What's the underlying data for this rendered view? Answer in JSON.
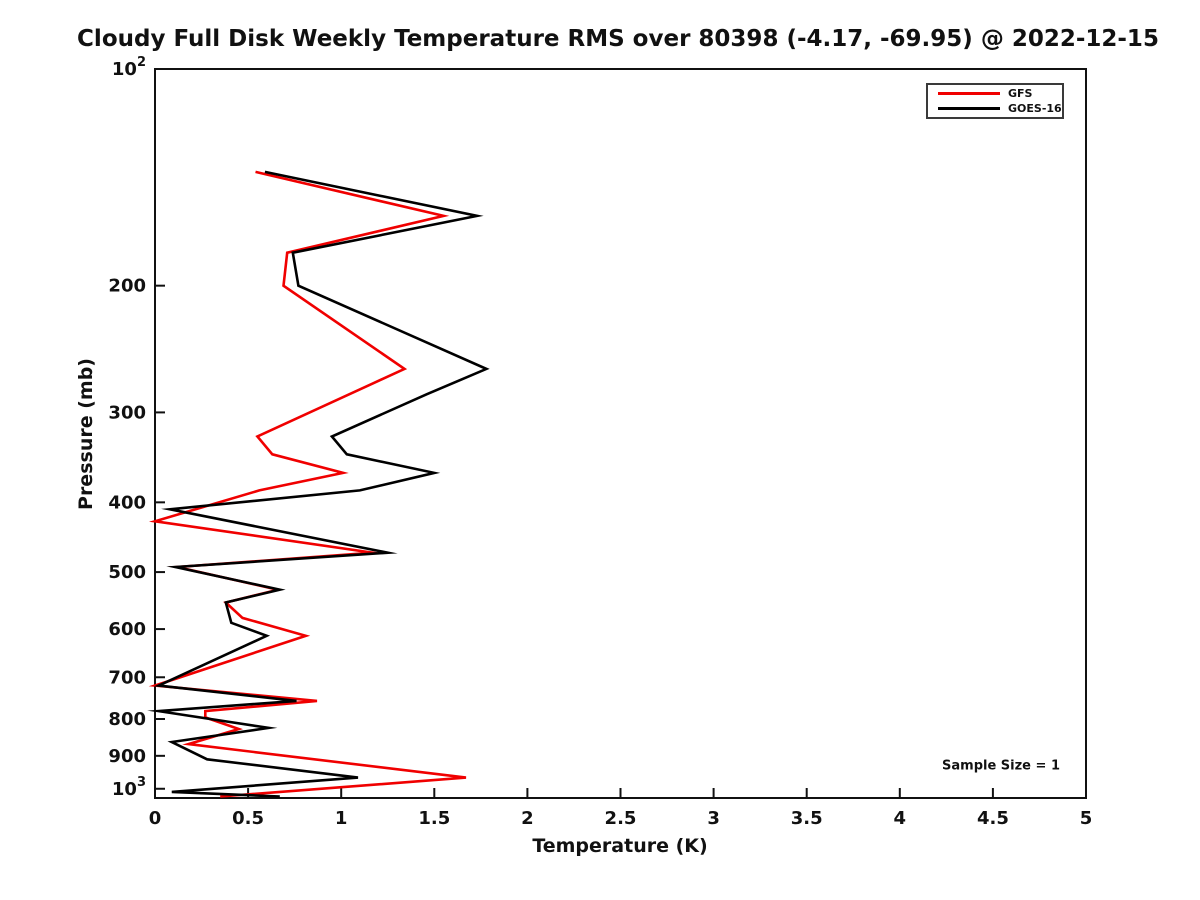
{
  "window": {
    "background": "#ffffff"
  },
  "annotations": {
    "sample_size": "Sample Size = 1"
  },
  "chart_data": {
    "type": "line",
    "title": "Cloudy Full Disk Weekly Temperature RMS over 80398 (-4.17, -69.95) @ 2022-12-15",
    "xlabel": "Temperature (K)",
    "ylabel": "Pressure (mb)",
    "grid": false,
    "legend_position": "top-right",
    "x_axis": {
      "min": 0,
      "max": 5,
      "ticks": [
        {
          "v": 0,
          "text": "0"
        },
        {
          "v": 0.5,
          "text": "0.5"
        },
        {
          "v": 1,
          "text": "1"
        },
        {
          "v": 1.5,
          "text": "1.5"
        },
        {
          "v": 2,
          "text": "2"
        },
        {
          "v": 2.5,
          "text": "2.5"
        },
        {
          "v": 3,
          "text": "3"
        },
        {
          "v": 3.5,
          "text": "3.5"
        },
        {
          "v": 4,
          "text": "4"
        },
        {
          "v": 4.5,
          "text": "4.5"
        },
        {
          "v": 5,
          "text": "5"
        }
      ]
    },
    "y_axis": {
      "scale": "log",
      "inverted": true,
      "min": 100,
      "max": 1030,
      "unit": "mb",
      "ticks": [
        {
          "p": 100,
          "text": "10",
          "sup": "2"
        },
        {
          "p": 200,
          "text": "200"
        },
        {
          "p": 300,
          "text": "300"
        },
        {
          "p": 400,
          "text": "400"
        },
        {
          "p": 500,
          "text": "500"
        },
        {
          "p": 600,
          "text": "600"
        },
        {
          "p": 700,
          "text": "700"
        },
        {
          "p": 800,
          "text": "800"
        },
        {
          "p": 900,
          "text": "900"
        },
        {
          "p": 1000,
          "text": "10",
          "sup": "3"
        }
      ]
    },
    "series": [
      {
        "name": "GFS",
        "color": "#f00000",
        "points_format": [
          "pressure_mb",
          "temperature_K"
        ],
        "points": [
          [
            139,
            0.54
          ],
          [
            160,
            1.55
          ],
          [
            180,
            0.71
          ],
          [
            200,
            0.69
          ],
          [
            261,
            1.34
          ],
          [
            324,
            0.55
          ],
          [
            343,
            0.63
          ],
          [
            364,
            1.01
          ],
          [
            385,
            0.56
          ],
          [
            425,
            0.0
          ],
          [
            470,
            1.17
          ],
          [
            492,
            0.12
          ],
          [
            529,
            0.66
          ],
          [
            551,
            0.38
          ],
          [
            579,
            0.47
          ],
          [
            613,
            0.81
          ],
          [
            719,
            0.0
          ],
          [
            755,
            0.87
          ],
          [
            780,
            0.27
          ],
          [
            796,
            0.27
          ],
          [
            826,
            0.45
          ],
          [
            867,
            0.18
          ],
          [
            965,
            1.67
          ],
          [
            1025,
            0.35
          ]
        ]
      },
      {
        "name": "GOES-16",
        "color": "#000000",
        "points_format": [
          "pressure_mb",
          "temperature_K"
        ],
        "points": [
          [
            139,
            0.59
          ],
          [
            160,
            1.73
          ],
          [
            180,
            0.74
          ],
          [
            200,
            0.77
          ],
          [
            261,
            1.78
          ],
          [
            283,
            1.46
          ],
          [
            324,
            0.95
          ],
          [
            343,
            1.03
          ],
          [
            364,
            1.5
          ],
          [
            385,
            1.1
          ],
          [
            409,
            0.08
          ],
          [
            470,
            1.25
          ],
          [
            492,
            0.11
          ],
          [
            529,
            0.67
          ],
          [
            551,
            0.38
          ],
          [
            588,
            0.41
          ],
          [
            613,
            0.6
          ],
          [
            719,
            0.02
          ],
          [
            755,
            0.76
          ],
          [
            780,
            0.02
          ],
          [
            823,
            0.61
          ],
          [
            861,
            0.09
          ],
          [
            910,
            0.28
          ],
          [
            965,
            1.09
          ],
          [
            1010,
            0.09
          ],
          [
            1025,
            0.67
          ]
        ]
      }
    ]
  }
}
